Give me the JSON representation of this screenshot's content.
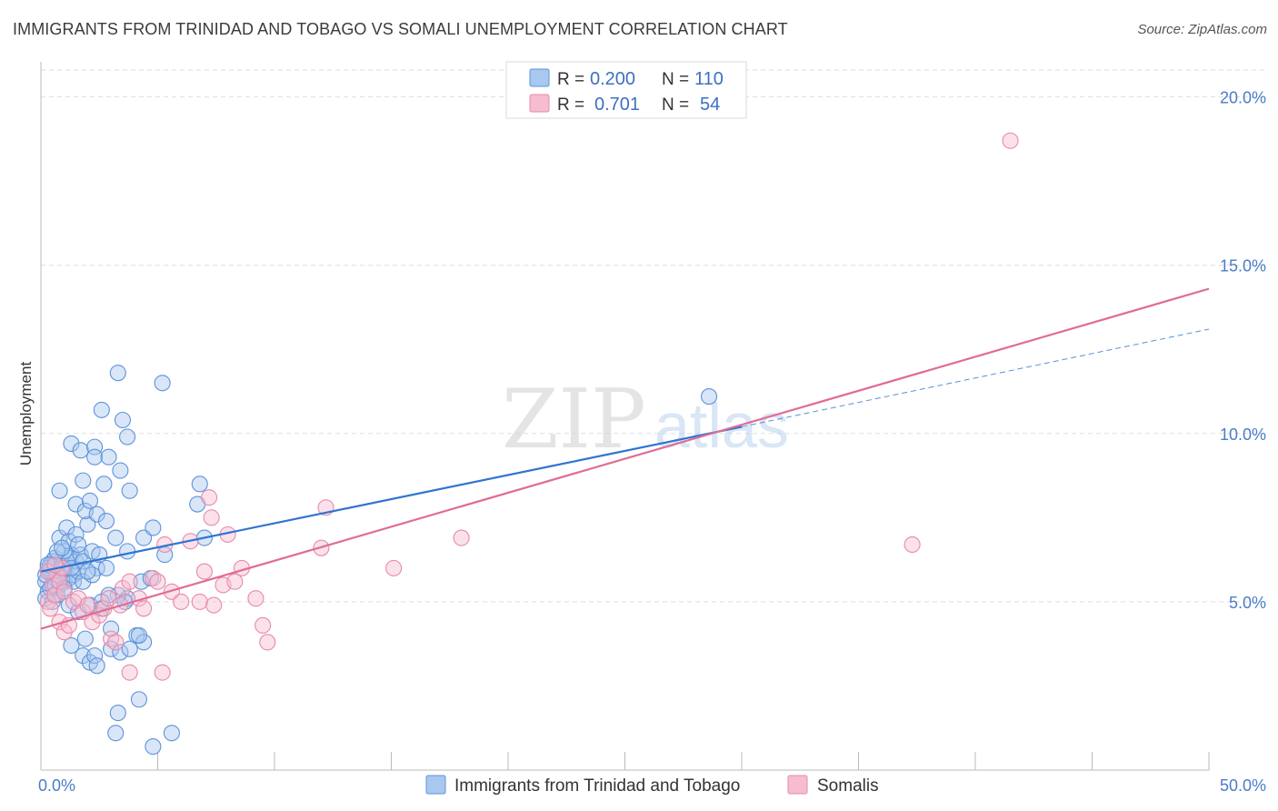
{
  "title": "IMMIGRANTS FROM TRINIDAD AND TOBAGO VS SOMALI UNEMPLOYMENT CORRELATION CHART",
  "source": "Source: ZipAtlas.com",
  "watermark": {
    "zip": "ZIP",
    "atlas": "atlas"
  },
  "colors": {
    "blue_fill": "#a8c8f0",
    "blue_stroke": "#5d93d9",
    "blue_line": "#2f74d0",
    "pink_fill": "#f6bcd0",
    "pink_stroke": "#e88aa8",
    "pink_line": "#e06c95",
    "grid": "#dddddd",
    "tick_label": "#4a7cc8"
  },
  "stats": {
    "blue": {
      "r_label": "R =",
      "r_value": "0.200",
      "n_label": "N =",
      "n_value": "110"
    },
    "pink": {
      "r_label": "R =",
      "r_value": "0.701",
      "n_label": "N =",
      "n_value": "54"
    }
  },
  "chart_data": {
    "type": "scatter",
    "title": "IMMIGRANTS FROM TRINIDAD AND TOBAGO VS SOMALI UNEMPLOYMENT CORRELATION CHART",
    "xlabel": "",
    "ylabel": "Unemployment",
    "xlim": [
      0,
      50
    ],
    "ylim": [
      0,
      20.8
    ],
    "x_tick_labels": [
      "0.0%",
      "50.0%"
    ],
    "y_ticks": [
      5,
      10,
      15,
      20
    ],
    "y_tick_labels": [
      "5.0%",
      "10.0%",
      "15.0%",
      "20.0%"
    ],
    "grid": true,
    "legend_position": "bottom-center",
    "series": [
      {
        "name": "Immigrants from Trinidad and Tobago",
        "color": "#a8c8f0",
        "trend": {
          "x": [
            0,
            30
          ],
          "y": [
            5.9,
            10.2
          ],
          "dashed_extension": {
            "x": [
              30,
              50
            ],
            "y": [
              10.2,
              13.1
            ]
          }
        },
        "points": [
          [
            0.2,
            5.6
          ],
          [
            0.3,
            5.3
          ],
          [
            0.4,
            5.9
          ],
          [
            0.5,
            5.5
          ],
          [
            0.5,
            6.2
          ],
          [
            0.6,
            5.7
          ],
          [
            0.7,
            5.2
          ],
          [
            0.8,
            5.8
          ],
          [
            0.9,
            6.0
          ],
          [
            1.0,
            5.6
          ],
          [
            0.3,
            6.0
          ],
          [
            0.4,
            5.4
          ],
          [
            0.6,
            6.3
          ],
          [
            0.7,
            5.9
          ],
          [
            0.8,
            5.5
          ],
          [
            1.1,
            6.1
          ],
          [
            1.2,
            5.7
          ],
          [
            1.3,
            6.4
          ],
          [
            1.4,
            5.8
          ],
          [
            1.5,
            6.2
          ],
          [
            0.2,
            5.8
          ],
          [
            0.4,
            6.1
          ],
          [
            0.6,
            5.5
          ],
          [
            0.9,
            5.7
          ],
          [
            1.0,
            6.0
          ],
          [
            1.2,
            6.3
          ],
          [
            1.4,
            5.6
          ],
          [
            1.6,
            5.9
          ],
          [
            1.7,
            6.4
          ],
          [
            1.8,
            5.6
          ],
          [
            0.8,
            6.9
          ],
          [
            1.0,
            6.5
          ],
          [
            1.1,
            7.2
          ],
          [
            1.2,
            6.8
          ],
          [
            1.3,
            6.0
          ],
          [
            1.5,
            7.0
          ],
          [
            1.6,
            6.7
          ],
          [
            1.8,
            6.2
          ],
          [
            2.0,
            7.3
          ],
          [
            2.2,
            6.5
          ],
          [
            2.4,
            6.0
          ],
          [
            2.5,
            6.4
          ],
          [
            2.2,
            5.8
          ],
          [
            2.8,
            6.0
          ],
          [
            2.0,
            5.9
          ],
          [
            1.5,
            7.9
          ],
          [
            1.9,
            7.7
          ],
          [
            2.1,
            8.0
          ],
          [
            2.4,
            7.6
          ],
          [
            2.8,
            7.4
          ],
          [
            0.8,
            8.3
          ],
          [
            1.3,
            9.7
          ],
          [
            1.7,
            9.5
          ],
          [
            1.8,
            8.6
          ],
          [
            2.3,
            9.6
          ],
          [
            2.3,
            9.3
          ],
          [
            2.7,
            8.5
          ],
          [
            2.9,
            9.3
          ],
          [
            3.4,
            8.9
          ],
          [
            3.8,
            8.3
          ],
          [
            3.2,
            6.9
          ],
          [
            3.7,
            6.5
          ],
          [
            4.4,
            6.9
          ],
          [
            4.8,
            7.2
          ],
          [
            5.3,
            6.4
          ],
          [
            4.3,
            5.6
          ],
          [
            4.7,
            5.7
          ],
          [
            3.7,
            5.1
          ],
          [
            3.3,
            5.2
          ],
          [
            2.9,
            5.2
          ],
          [
            1.2,
            4.9
          ],
          [
            1.6,
            4.7
          ],
          [
            2.1,
            4.9
          ],
          [
            2.6,
            5.0
          ],
          [
            2.6,
            4.8
          ],
          [
            3.6,
            5.0
          ],
          [
            3.0,
            4.2
          ],
          [
            1.3,
            3.7
          ],
          [
            1.8,
            3.4
          ],
          [
            1.9,
            3.9
          ],
          [
            2.1,
            3.2
          ],
          [
            2.3,
            3.4
          ],
          [
            2.4,
            3.1
          ],
          [
            3.0,
            3.6
          ],
          [
            3.4,
            3.5
          ],
          [
            3.8,
            3.6
          ],
          [
            4.1,
            4.0
          ],
          [
            4.4,
            3.8
          ],
          [
            4.2,
            4.0
          ],
          [
            3.3,
            1.7
          ],
          [
            3.2,
            1.1
          ],
          [
            4.2,
            2.1
          ],
          [
            4.8,
            0.7
          ],
          [
            5.6,
            1.1
          ],
          [
            3.3,
            11.8
          ],
          [
            2.6,
            10.7
          ],
          [
            3.5,
            10.4
          ],
          [
            3.7,
            9.9
          ],
          [
            5.2,
            11.5
          ],
          [
            6.8,
            8.5
          ],
          [
            6.7,
            7.9
          ],
          [
            7.0,
            6.9
          ],
          [
            28.6,
            11.1
          ],
          [
            0.2,
            5.1
          ],
          [
            0.5,
            5.0
          ],
          [
            0.6,
            5.2
          ],
          [
            0.7,
            6.5
          ],
          [
            0.3,
            6.1
          ],
          [
            1.0,
            5.4
          ],
          [
            0.9,
            6.6
          ]
        ]
      },
      {
        "name": "Somalis",
        "color": "#f6bcd0",
        "trend": {
          "x": [
            0,
            50
          ],
          "y": [
            4.2,
            14.3
          ]
        },
        "points": [
          [
            0.3,
            5.0
          ],
          [
            0.4,
            4.8
          ],
          [
            0.5,
            5.5
          ],
          [
            0.6,
            5.2
          ],
          [
            0.7,
            5.8
          ],
          [
            0.8,
            5.6
          ],
          [
            0.9,
            6.0
          ],
          [
            1.0,
            5.3
          ],
          [
            0.3,
            5.9
          ],
          [
            0.6,
            6.1
          ],
          [
            0.8,
            4.4
          ],
          [
            1.0,
            4.1
          ],
          [
            1.2,
            4.3
          ],
          [
            1.4,
            5.0
          ],
          [
            1.6,
            5.1
          ],
          [
            1.8,
            4.7
          ],
          [
            2.0,
            4.9
          ],
          [
            2.2,
            4.4
          ],
          [
            2.5,
            4.6
          ],
          [
            2.7,
            4.8
          ],
          [
            2.9,
            5.1
          ],
          [
            3.0,
            3.9
          ],
          [
            3.2,
            3.8
          ],
          [
            3.4,
            4.9
          ],
          [
            3.5,
            5.4
          ],
          [
            3.8,
            5.6
          ],
          [
            4.2,
            5.1
          ],
          [
            4.4,
            4.8
          ],
          [
            4.8,
            5.7
          ],
          [
            5.0,
            5.6
          ],
          [
            5.3,
            6.7
          ],
          [
            5.6,
            5.3
          ],
          [
            6.0,
            5.0
          ],
          [
            6.4,
            6.8
          ],
          [
            6.8,
            5.0
          ],
          [
            7.0,
            5.9
          ],
          [
            7.4,
            4.9
          ],
          [
            7.8,
            5.5
          ],
          [
            8.3,
            5.6
          ],
          [
            8.6,
            6.0
          ],
          [
            9.2,
            5.1
          ],
          [
            7.2,
            8.1
          ],
          [
            7.3,
            7.5
          ],
          [
            8.0,
            7.0
          ],
          [
            9.5,
            4.3
          ],
          [
            9.7,
            3.8
          ],
          [
            12.2,
            7.8
          ],
          [
            12.0,
            6.6
          ],
          [
            15.1,
            6.0
          ],
          [
            18.0,
            6.9
          ],
          [
            37.3,
            6.7
          ],
          [
            41.5,
            18.7
          ],
          [
            3.8,
            2.9
          ],
          [
            5.2,
            2.9
          ]
        ]
      }
    ]
  },
  "legend": {
    "blue_label": "Immigrants from Trinidad and Tobago",
    "pink_label": "Somalis"
  }
}
